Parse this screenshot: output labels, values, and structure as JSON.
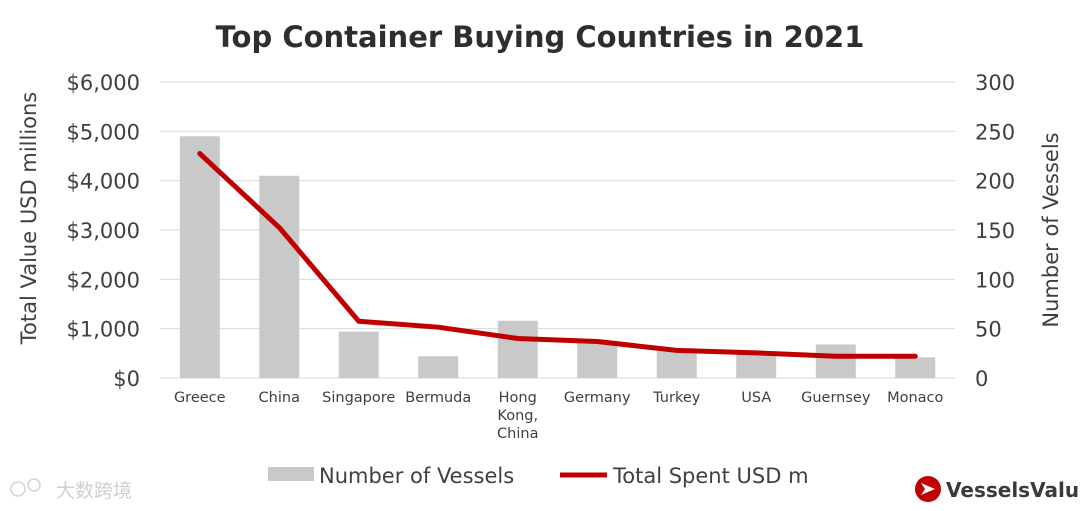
{
  "chart_data": {
    "type": "bar",
    "title": "Top Container Buying Countries in 2021",
    "categories": [
      [
        "Greece"
      ],
      [
        "China"
      ],
      [
        "Singapore"
      ],
      [
        "Bermuda"
      ],
      [
        "Hong",
        "Kong,",
        "China"
      ],
      [
        "Germany"
      ],
      [
        "Turkey"
      ],
      [
        "USA"
      ],
      [
        "Guernsey"
      ],
      [
        "Monaco"
      ]
    ],
    "series": [
      {
        "name": "Number of Vessels",
        "type": "bar",
        "axis": "right",
        "color": "#c9c9c9",
        "values": [
          245,
          205,
          47,
          22,
          58,
          38,
          30,
          25,
          34,
          21
        ]
      },
      {
        "name": "Total Spent USD m",
        "type": "line",
        "axis": "left",
        "color": "#c00000",
        "values": [
          4550,
          3050,
          1150,
          1030,
          800,
          740,
          560,
          510,
          440,
          440
        ]
      }
    ],
    "y_left": {
      "label": "Total Value USD millions",
      "range": [
        0,
        6000
      ],
      "ticks": [
        "$0",
        "$1,000",
        "$2,000",
        "$3,000",
        "$4,000",
        "$5,000",
        "$6,000"
      ]
    },
    "y_right": {
      "label": "Number of Vessels",
      "range": [
        0,
        300
      ],
      "ticks": [
        "0",
        "50",
        "100",
        "150",
        "200",
        "250",
        "300"
      ]
    },
    "grid": true,
    "legend_position": "bottom"
  },
  "branding": {
    "logo_text": "VesselsValue",
    "logo_color": "#c00000",
    "watermark_text": "大数跨境"
  }
}
